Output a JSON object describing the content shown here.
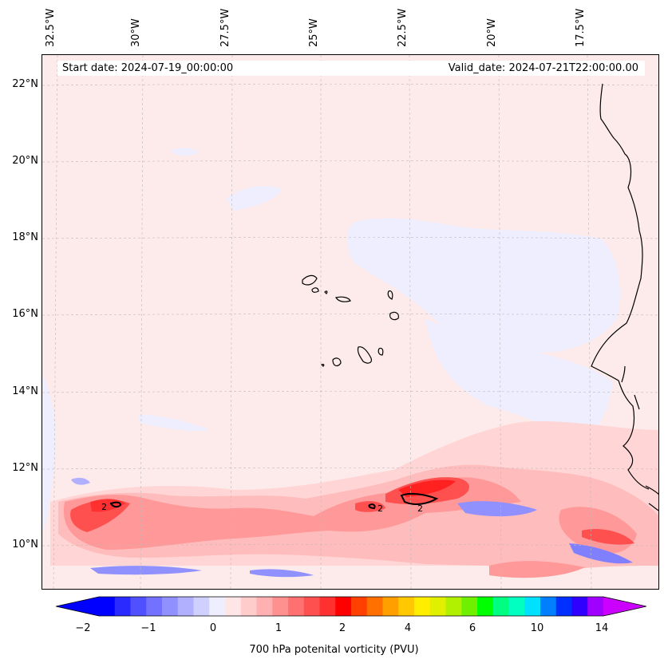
{
  "map": {
    "start_date": "Start date: 2024-07-19_00:00:00",
    "valid_date": "Valid_date: 2024-07-21T22:00:00.00",
    "lon_labels": [
      "32.5°W",
      "30°W",
      "27.5°W",
      "25°W",
      "22.5°W",
      "20°W",
      "17.5°W"
    ],
    "lat_labels": [
      "22°N",
      "20°N",
      "18°N",
      "16°N",
      "14°N",
      "12°N",
      "10°N"
    ],
    "contour_labels": [
      "2",
      "2",
      "2"
    ]
  },
  "colorbar": {
    "label": "700 hPa potenital vorticity (PVU)",
    "ticks": [
      "−2",
      "−1",
      "0",
      "1",
      "2",
      "4",
      "6",
      "10",
      "14"
    ],
    "colors": [
      "#0000ff",
      "#2a2aff",
      "#5050ff",
      "#7272ff",
      "#9090ff",
      "#b0b0ff",
      "#d0d0ff",
      "#eeeeff",
      "#ffe6e6",
      "#ffcccc",
      "#ffb0b0",
      "#ff9090",
      "#ff7070",
      "#ff5050",
      "#ff3030",
      "#ff0000",
      "#ff4000",
      "#ff7000",
      "#ffa000",
      "#ffc800",
      "#ffee00",
      "#e0f000",
      "#b0f000",
      "#70f000",
      "#00ff00",
      "#00ff80",
      "#00ffc0",
      "#00e0ff",
      "#0080ff",
      "#0030ff",
      "#3000ff",
      "#a000ff"
    ],
    "under_color": "#0000ff",
    "over_color": "#cc00ff"
  },
  "colors": {
    "background": "#fdeaea",
    "land_outline": "#000000",
    "grid": "#bbbbbb"
  }
}
